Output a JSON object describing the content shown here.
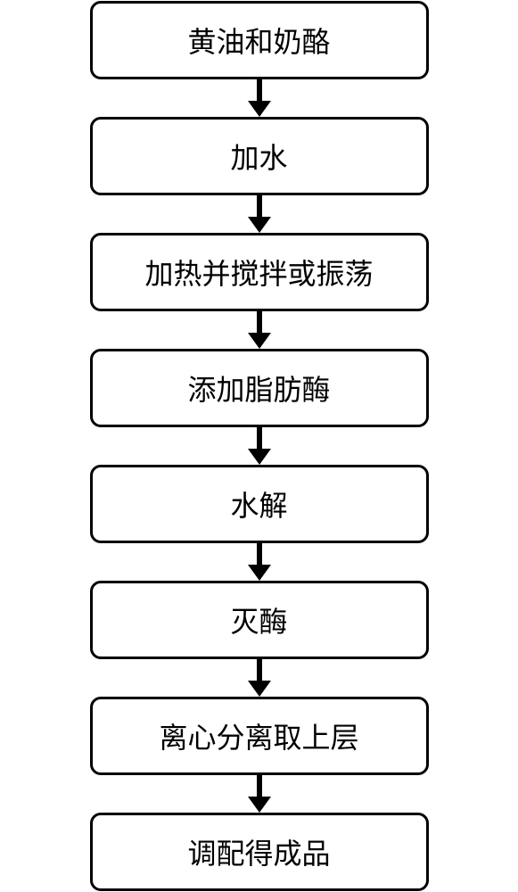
{
  "flowchart": {
    "type": "flowchart",
    "direction": "vertical",
    "background_color": "#ffffff",
    "box_style": {
      "border_color": "#000000",
      "border_width": 3,
      "border_radius": 12,
      "fill_color": "#ffffff",
      "min_width": 380,
      "padding_y": 18,
      "padding_x": 20
    },
    "text_style": {
      "font_family": "SimSun",
      "font_size": 32,
      "color": "#000000"
    },
    "arrow_style": {
      "color": "#000000",
      "line_width": 6,
      "head_width": 26,
      "head_height": 18,
      "total_height": 42
    },
    "steps": [
      {
        "label": "黄油和奶酪"
      },
      {
        "label": "加水"
      },
      {
        "label": "加热并搅拌或振荡"
      },
      {
        "label": "添加脂肪酶"
      },
      {
        "label": "水解"
      },
      {
        "label": "灭酶"
      },
      {
        "label": "离心分离取上层"
      },
      {
        "label": "调配得成品"
      }
    ]
  }
}
